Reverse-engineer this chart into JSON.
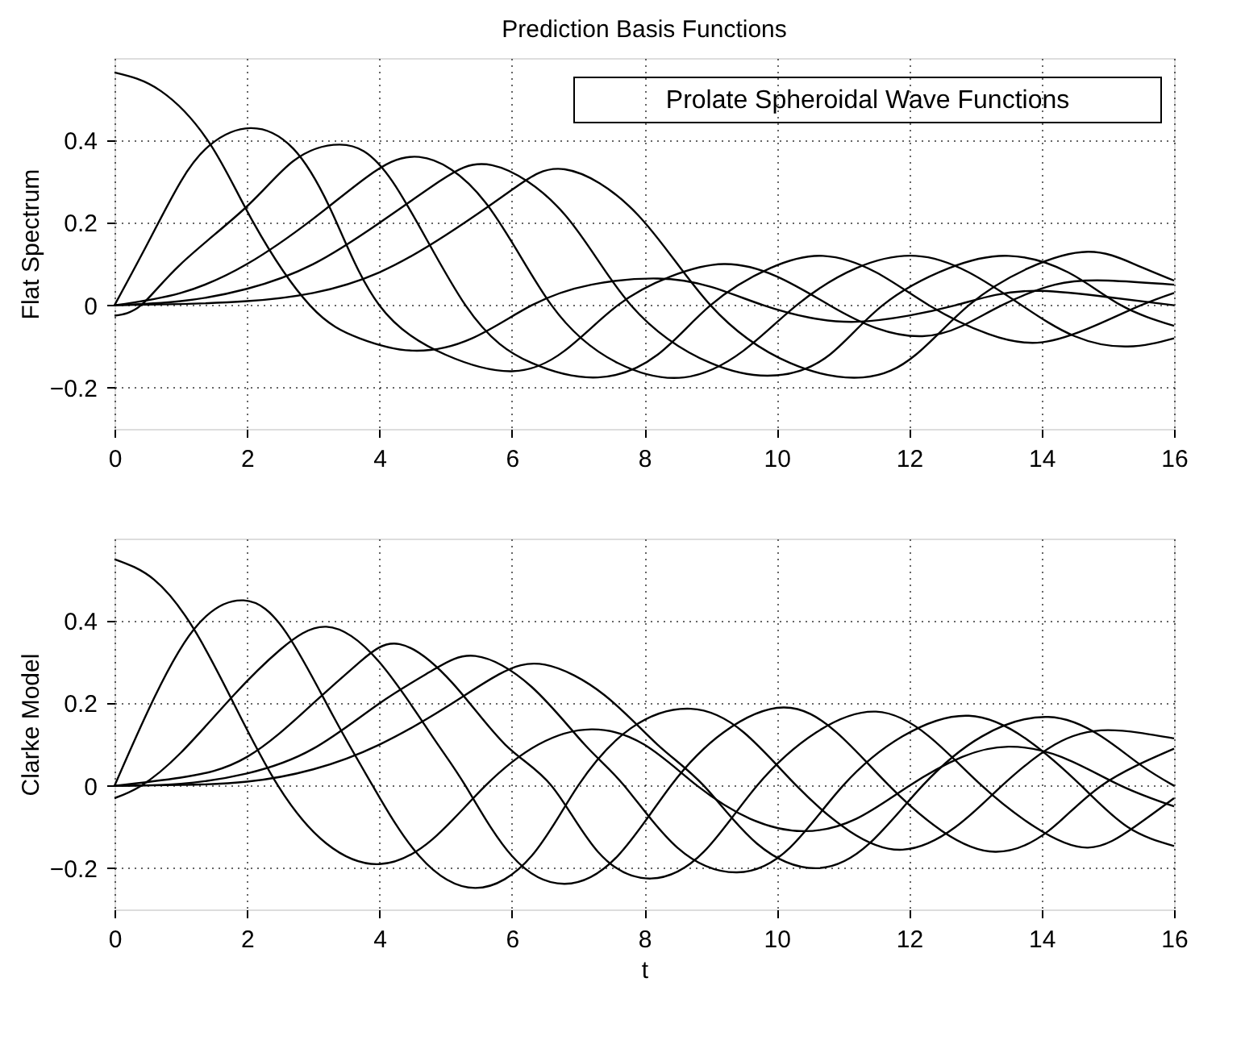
{
  "chart_data": [
    {
      "type": "line",
      "title": "Prediction Basis Functions",
      "ylabel": "Flat Spectrum",
      "annotations": [
        "Prolate Spheroidal Wave Functions"
      ],
      "xlim": [
        0,
        16
      ],
      "xticks": [
        0,
        2,
        4,
        6,
        8,
        10,
        12,
        14,
        16
      ],
      "ylim": [
        -0.3,
        0.6
      ],
      "yticks": [
        -0.2,
        0,
        0.2,
        0.4
      ],
      "grid": true,
      "line_style": "solid",
      "series": [
        {
          "color": "#000000",
          "x": [
            0,
            0.7,
            1.45,
            2.1,
            2.95,
            3.7,
            4.5,
            5.4,
            6.3,
            7.2,
            8.2,
            9.0,
            9.8,
            10.5,
            11.2,
            12.0,
            12.7,
            13.3,
            14.0,
            15.0,
            16
          ],
          "values": [
            0.565,
            0.52,
            0.39,
            0.2,
            0,
            -0.08,
            -0.11,
            -0.08,
            0,
            0.05,
            0.065,
            0.045,
            0,
            -0.03,
            -0.04,
            -0.025,
            0,
            0.025,
            0.035,
            0.02,
            0.0
          ]
        },
        {
          "color": "#000000",
          "x": [
            0,
            0.5,
            1.0,
            1.45,
            2.05,
            2.7,
            3.3,
            4.0,
            5.0,
            6.0,
            6.8,
            7.6,
            8.4,
            9.2,
            10.0,
            10.8,
            11.5,
            12.2,
            12.8,
            13.4,
            14.2,
            15.0,
            16
          ],
          "values": [
            0,
            0.15,
            0.3,
            0.39,
            0.43,
            0.38,
            0.22,
            0,
            -0.12,
            -0.16,
            -0.11,
            0,
            0.07,
            0.1,
            0.07,
            0,
            -0.055,
            -0.075,
            -0.05,
            0,
            0.05,
            0.06,
            0.05
          ]
        },
        {
          "color": "#000000",
          "x": [
            0,
            0.4,
            1.0,
            2.0,
            2.7,
            3.4,
            4.2,
            5.3,
            6.3,
            7.3,
            8.2,
            9.0,
            9.9,
            10.7,
            11.5,
            12.3,
            13.2,
            14.0,
            14.8,
            15.5,
            16
          ],
          "values": [
            -0.025,
            0,
            0.1,
            0.24,
            0.35,
            0.39,
            0.3,
            0,
            -0.14,
            -0.175,
            -0.12,
            0,
            0.09,
            0.12,
            0.08,
            0,
            -0.07,
            -0.09,
            -0.05,
            0,
            0.03
          ]
        },
        {
          "color": "#000000",
          "x": [
            0,
            1,
            2,
            3,
            3.8,
            4.6,
            5.6,
            6.6,
            7.6,
            8.6,
            9.5,
            10.3,
            11.2,
            12.1,
            12.9,
            13.7,
            14.5,
            15.3,
            16
          ],
          "values": [
            0,
            0.03,
            0.1,
            0.21,
            0.31,
            0.36,
            0.25,
            0,
            -0.14,
            -0.175,
            -0.11,
            0,
            0.09,
            0.12,
            0.08,
            0,
            -0.075,
            -0.1,
            -0.08
          ]
        },
        {
          "color": "#000000",
          "x": [
            0,
            1,
            2,
            3,
            4,
            4.9,
            5.7,
            6.8,
            7.8,
            9.0,
            10.0,
            10.8,
            11.6,
            12.6,
            13.5,
            14.4,
            15.2,
            16
          ],
          "values": [
            0,
            0.01,
            0.04,
            0.1,
            0.2,
            0.3,
            0.34,
            0.22,
            0,
            -0.14,
            -0.17,
            -0.12,
            0,
            0.09,
            0.12,
            0.08,
            0,
            -0.05
          ]
        },
        {
          "color": "#000000",
          "x": [
            0,
            1,
            2,
            3,
            4,
            5,
            6,
            6.8,
            7.9,
            9.0,
            10.2,
            11.3,
            12.1,
            12.9,
            13.8,
            14.7,
            15.4,
            16
          ],
          "values": [
            0,
            0.003,
            0.01,
            0.03,
            0.08,
            0.17,
            0.28,
            0.33,
            0.22,
            0,
            -0.14,
            -0.175,
            -0.12,
            0,
            0.09,
            0.13,
            0.1,
            0.06
          ]
        }
      ]
    },
    {
      "type": "line",
      "ylabel": "Clarke Model",
      "xlabel": "t",
      "xlim": [
        0,
        16
      ],
      "xticks": [
        0,
        2,
        4,
        6,
        8,
        10,
        12,
        14,
        16
      ],
      "ylim": [
        -0.3,
        0.6
      ],
      "yticks": [
        -0.2,
        0,
        0.2,
        0.4
      ],
      "grid": true,
      "line_style": "solid",
      "series": [
        {
          "color": "#000000",
          "x": [
            0,
            0.6,
            1.2,
            1.8,
            2.47,
            3.2,
            4.0,
            4.8,
            5.6,
            6.4,
            7.2,
            8.0,
            8.8,
            9.6,
            10.4,
            11.2,
            12.0,
            12.8,
            13.5,
            14.3,
            15.2,
            16
          ],
          "values": [
            0.55,
            0.5,
            0.38,
            0.2,
            0,
            -0.14,
            -0.19,
            -0.13,
            0,
            0.1,
            0.137,
            0.1,
            0,
            -0.08,
            -0.11,
            -0.08,
            0,
            0.07,
            0.095,
            0.07,
            0,
            -0.05
          ]
        },
        {
          "color": "#000000",
          "x": [
            0,
            0.5,
            1.2,
            1.95,
            2.6,
            3.3,
            3.9,
            4.6,
            5.45,
            6.3,
            7.0,
            7.8,
            8.7,
            9.5,
            10.3,
            11.1,
            11.9,
            12.7,
            13.4,
            14.2,
            15.0,
            16
          ],
          "values": [
            0,
            0.18,
            0.38,
            0.45,
            0.37,
            0.17,
            0,
            -0.17,
            -0.248,
            -0.17,
            0,
            0.14,
            0.187,
            0.13,
            0,
            -0.11,
            -0.155,
            -0.1,
            0,
            0.1,
            0.135,
            0.115
          ]
        },
        {
          "color": "#000000",
          "x": [
            0,
            0.4,
            1.0,
            1.8,
            2.5,
            3.2,
            4.0,
            4.8,
            5.3,
            6.0,
            6.8,
            7.6,
            8.4,
            9.2,
            10.1,
            10.9,
            11.7,
            12.5,
            13.3,
            14.1,
            14.9,
            16
          ],
          "values": [
            -0.03,
            0,
            0.08,
            0.22,
            0.33,
            0.386,
            0.3,
            0.12,
            0,
            -0.17,
            -0.238,
            -0.17,
            0,
            0.13,
            0.19,
            0.13,
            0,
            -0.11,
            -0.16,
            -0.11,
            0,
            0.09
          ]
        },
        {
          "color": "#000000",
          "x": [
            0,
            1,
            2,
            3,
            3.7,
            4.3,
            5.1,
            5.9,
            6.6,
            7.3,
            8.1,
            8.9,
            9.7,
            10.6,
            11.5,
            12.3,
            13.1,
            13.9,
            14.7,
            15.4,
            16
          ],
          "values": [
            0,
            0.02,
            0.07,
            0.2,
            0.3,
            0.344,
            0.25,
            0.1,
            0,
            -0.16,
            -0.225,
            -0.16,
            0,
            0.13,
            0.18,
            0.12,
            0,
            -0.1,
            -0.15,
            -0.1,
            -0.03
          ]
        },
        {
          "color": "#000000",
          "x": [
            0,
            1,
            2,
            3,
            4,
            4.8,
            5.45,
            6.3,
            7.1,
            7.7,
            8.5,
            9.4,
            10.2,
            11.0,
            11.9,
            12.9,
            13.8,
            14.6,
            15.3,
            16
          ],
          "values": [
            0,
            0.005,
            0.03,
            0.09,
            0.2,
            0.28,
            0.315,
            0.24,
            0.1,
            0,
            -0.15,
            -0.21,
            -0.15,
            0,
            0.12,
            0.17,
            0.11,
            0,
            -0.1,
            -0.146
          ]
        },
        {
          "color": "#000000",
          "x": [
            0,
            1,
            2,
            3,
            4,
            5,
            5.8,
            6.5,
            7.4,
            8.2,
            8.9,
            9.7,
            10.6,
            11.4,
            12.2,
            13.1,
            14.1,
            14.9,
            15.5,
            16
          ],
          "values": [
            0,
            0.002,
            0.01,
            0.04,
            0.1,
            0.19,
            0.27,
            0.294,
            0.22,
            0.1,
            0,
            -0.14,
            -0.2,
            -0.14,
            0,
            0.12,
            0.167,
            0.12,
            0.05,
            0.0
          ]
        }
      ]
    }
  ]
}
